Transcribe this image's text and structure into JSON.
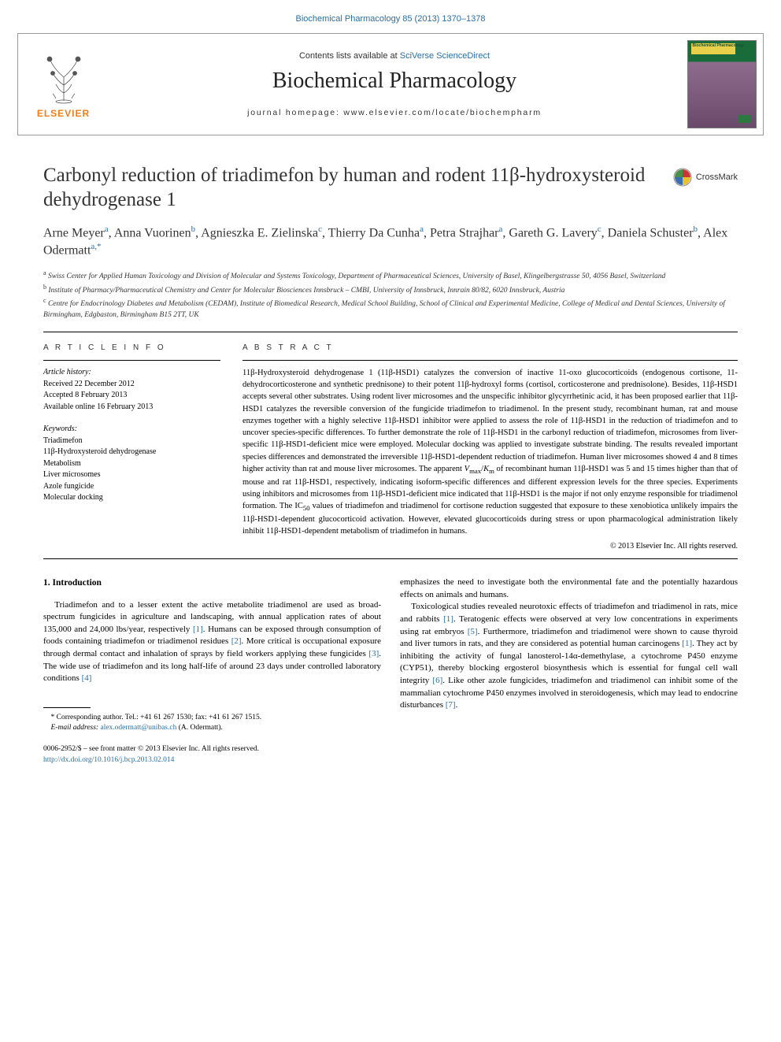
{
  "top_link": "Biochemical Pharmacology 85 (2013) 1370–1378",
  "header": {
    "contents_prefix": "Contents lists available at ",
    "contents_link": "SciVerse ScienceDirect",
    "journal_name": "Biochemical Pharmacology",
    "homepage_prefix": "journal homepage: ",
    "homepage_url": "www.elsevier.com/locate/biochempharm",
    "elsevier_label": "ELSEVIER",
    "cover_tiny": "Biochemical Pharmacology"
  },
  "article": {
    "title": "Carbonyl reduction of triadimefon by human and rodent 11β-hydroxysteroid dehydrogenase 1",
    "crossmark_label": "CrossMark",
    "authors_html": "Arne Meyer<sup>a</sup>, Anna Vuorinen<sup>b</sup>, Agnieszka E. Zielinska<sup>c</sup>, Thierry Da Cunha<sup>a</sup>, Petra Strajhar<sup>a</sup>, Gareth G. Lavery<sup>c</sup>, Daniela Schuster<sup>b</sup>, Alex Odermatt<sup>a,*</sup>",
    "affiliations": [
      {
        "sup": "a",
        "text": "Swiss Center for Applied Human Toxicology and Division of Molecular and Systems Toxicology, Department of Pharmaceutical Sciences, University of Basel, Klingelbergstrasse 50, 4056 Basel, Switzerland"
      },
      {
        "sup": "b",
        "text": "Institute of Pharmacy/Pharmaceutical Chemistry and Center for Molecular Biosciences Innsbruck – CMBI, University of Innsbruck, Innrain 80/82, 6020 Innsbruck, Austria"
      },
      {
        "sup": "c",
        "text": "Centre for Endocrinology Diabetes and Metabolism (CEDAM), Institute of Biomedical Research, Medical School Building, School of Clinical and Experimental Medicine, College of Medical and Dental Sciences, University of Birmingham, Edgbaston, Birmingham B15 2TT, UK"
      }
    ]
  },
  "info": {
    "section_label": "A R T I C L E   I N F O",
    "history_label": "Article history:",
    "history": [
      "Received 22 December 2012",
      "Accepted 8 February 2013",
      "Available online 16 February 2013"
    ],
    "keywords_label": "Keywords:",
    "keywords": [
      "Triadimefon",
      "11β-Hydroxysteroid dehydrogenase",
      "Metabolism",
      "Liver microsomes",
      "Azole fungicide",
      "Molecular docking"
    ]
  },
  "abstract": {
    "section_label": "A B S T R A C T",
    "text": "11β-Hydroxysteroid dehydrogenase 1 (11β-HSD1) catalyzes the conversion of inactive 11-oxo glucocorticoids (endogenous cortisone, 11-dehydrocorticosterone and synthetic prednisone) to their potent 11β-hydroxyl forms (cortisol, corticosterone and prednisolone). Besides, 11β-HSD1 accepts several other substrates. Using rodent liver microsomes and the unspecific inhibitor glycyrrhetinic acid, it has been proposed earlier that 11β-HSD1 catalyzes the reversible conversion of the fungicide triadimefon to triadimenol. In the present study, recombinant human, rat and mouse enzymes together with a highly selective 11β-HSD1 inhibitor were applied to assess the role of 11β-HSD1 in the reduction of triadimefon and to uncover species-specific differences. To further demonstrate the role of 11β-HSD1 in the carbonyl reduction of triadimefon, microsomes from liver-specific 11β-HSD1-deficient mice were employed. Molecular docking was applied to investigate substrate binding. The results revealed important species differences and demonstrated the irreversible 11β-HSD1-dependent reduction of triadimefon. Human liver microsomes showed 4 and 8 times higher activity than rat and mouse liver microsomes. The apparent Vmax/Km of recombinant human 11β-HSD1 was 5 and 15 times higher than that of mouse and rat 11β-HSD1, respectively, indicating isoform-specific differences and different expression levels for the three species. Experiments using inhibitors and microsomes from 11β-HSD1-deficient mice indicated that 11β-HSD1 is the major if not only enzyme responsible for triadimenol formation. The IC50 values of triadimefon and triadimenol for cortisone reduction suggested that exposure to these xenobiotica unlikely impairs the 11β-HSD1-dependent glucocorticoid activation. However, elevated glucocorticoids during stress or upon pharmacological administration likely inhibit 11β-HSD1-dependent metabolism of triadimefon in humans.",
    "copyright": "© 2013 Elsevier Inc. All rights reserved."
  },
  "body": {
    "heading": "1. Introduction",
    "left_paras": [
      "Triadimefon and to a lesser extent the active metabolite triadimenol are used as broad-spectrum fungicides in agriculture and landscaping, with annual application rates of about 135,000 and 24,000 lbs/year, respectively [1]. Humans can be exposed through consumption of foods containing triadimefon or triadimenol residues [2]. More critical is occupational exposure through dermal contact and inhalation of sprays by field workers applying these fungicides [3]. The wide use of triadimefon and its long half-life of around 23 days under controlled laboratory conditions [4]"
    ],
    "right_paras": [
      "emphasizes the need to investigate both the environmental fate and the potentially hazardous effects on animals and humans.",
      "Toxicological studies revealed neurotoxic effects of triadimefon and triadimenol in rats, mice and rabbits [1]. Teratogenic effects were observed at very low concentrations in experiments using rat embryos [5]. Furthermore, triadimefon and triadimenol were shown to cause thyroid and liver tumors in rats, and they are considered as potential human carcinogens [1]. They act by inhibiting the activity of fungal lanosterol-14α-demethylase, a cytochrome P450 enzyme (CYP51), thereby blocking ergosterol biosynthesis which is essential for fungal cell wall integrity [6]. Like other azole fungicides, triadimefon and triadimenol can inhibit some of the mammalian cytochrome P450 enzymes involved in steroidogenesis, which may lead to endocrine disturbances [7]."
    ],
    "footnote_corresponding": "* Corresponding author. Tel.: +41 61 267 1530; fax: +41 61 267 1515.",
    "footnote_email_label": "E-mail address: ",
    "footnote_email": "alex.odermatt@unibas.ch",
    "footnote_email_suffix": " (A. Odermatt)."
  },
  "footer": {
    "line1": "0006-2952/$ – see front matter © 2013 Elsevier Inc. All rights reserved.",
    "doi": "http://dx.doi.org/10.1016/j.bcp.2013.02.014"
  },
  "colors": {
    "link": "#2a6ea5",
    "elsevier_orange": "#f07d1a"
  }
}
